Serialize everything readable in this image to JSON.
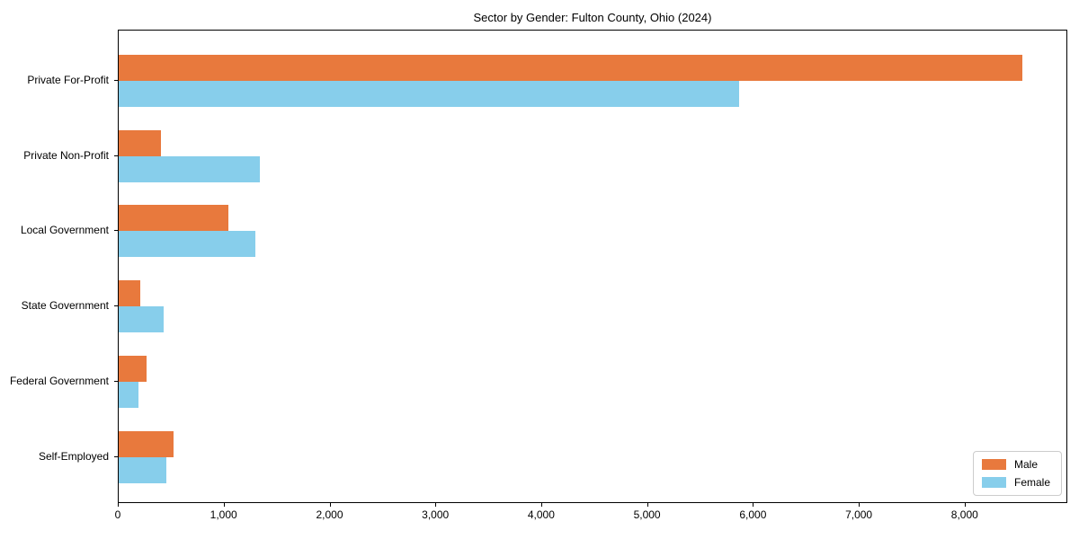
{
  "chart_data": {
    "type": "bar",
    "orientation": "horizontal",
    "title": "Sector by Gender: Fulton County, Ohio (2024)",
    "categories": [
      "Private For-Profit",
      "Private Non-Profit",
      "Local Government",
      "State Government",
      "Federal Government",
      "Self-Employed"
    ],
    "series": [
      {
        "name": "Male",
        "color": "#e8793d",
        "values": [
          8540,
          400,
          1040,
          200,
          265,
          520
        ]
      },
      {
        "name": "Female",
        "color": "#87ceeb",
        "values": [
          5860,
          1330,
          1290,
          425,
          185,
          450
        ]
      }
    ],
    "xlabel": "",
    "ylabel": "",
    "xlim": [
      0,
      8970
    ],
    "xticks": [
      0,
      1000,
      2000,
      3000,
      4000,
      5000,
      6000,
      7000,
      8000
    ],
    "xticklabels": [
      "0",
      "1,000",
      "2,000",
      "3,000",
      "4,000",
      "5,000",
      "6,000",
      "7,000",
      "8,000"
    ],
    "grid": false,
    "legend": {
      "position": "lower right",
      "entries": [
        "Male",
        "Female"
      ]
    }
  }
}
